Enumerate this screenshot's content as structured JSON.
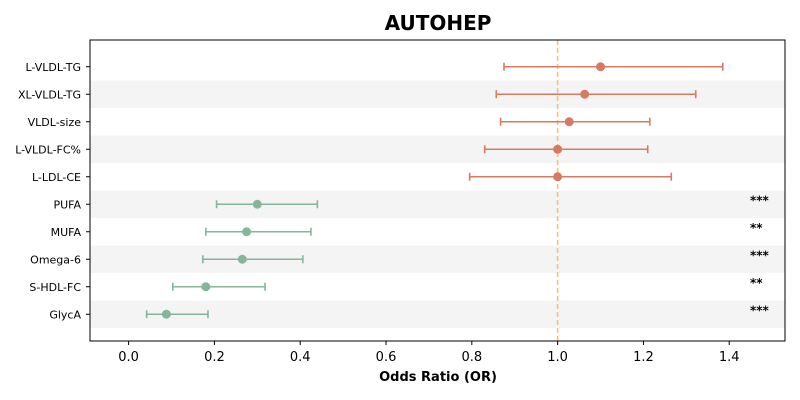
{
  "chart_data": {
    "type": "forest",
    "title": "AUTOHEP",
    "xlabel": "Odds Ratio (OR)",
    "ylabel": "",
    "xlim": [
      -0.09,
      1.53
    ],
    "x_ticks": [
      0.0,
      0.2,
      0.4,
      0.6,
      0.8,
      1.0,
      1.2,
      1.4
    ],
    "x_tick_labels": [
      "0.0",
      "0.2",
      "0.4",
      "0.6",
      "0.8",
      "1.0",
      "1.2",
      "1.4"
    ],
    "reference_line": 1.0,
    "grid": false,
    "alternating_row_shading": true,
    "colors": {
      "positive": "#d87a62",
      "negative": "#85b59a",
      "reference": "#f5c27a",
      "band": "#f4f4f4"
    },
    "rows": [
      {
        "label": "L-VLDL-TG",
        "or": 1.1,
        "ci_low": 0.875,
        "ci_high": 1.385,
        "significance": "",
        "group": "positive"
      },
      {
        "label": "XL-VLDL-TG",
        "or": 1.063,
        "ci_low": 0.857,
        "ci_high": 1.322,
        "significance": "",
        "group": "positive"
      },
      {
        "label": "VLDL-size",
        "or": 1.027,
        "ci_low": 0.867,
        "ci_high": 1.215,
        "significance": "",
        "group": "positive"
      },
      {
        "label": "L-VLDL-FC%",
        "or": 1.0,
        "ci_low": 0.83,
        "ci_high": 1.21,
        "significance": "",
        "group": "positive"
      },
      {
        "label": "L-LDL-CE",
        "or": 1.0,
        "ci_low": 0.795,
        "ci_high": 1.265,
        "significance": "",
        "group": "positive"
      },
      {
        "label": "PUFA",
        "or": 0.3,
        "ci_low": 0.205,
        "ci_high": 0.44,
        "significance": "***",
        "group": "negative"
      },
      {
        "label": "MUFA",
        "or": 0.275,
        "ci_low": 0.18,
        "ci_high": 0.425,
        "significance": "**",
        "group": "negative"
      },
      {
        "label": "Omega-6",
        "or": 0.265,
        "ci_low": 0.173,
        "ci_high": 0.406,
        "significance": "***",
        "group": "negative"
      },
      {
        "label": "S-HDL-FC",
        "or": 0.18,
        "ci_low": 0.103,
        "ci_high": 0.318,
        "significance": "**",
        "group": "negative"
      },
      {
        "label": "GlycA",
        "or": 0.088,
        "ci_low": 0.042,
        "ci_high": 0.185,
        "significance": "***",
        "group": "negative"
      }
    ]
  }
}
